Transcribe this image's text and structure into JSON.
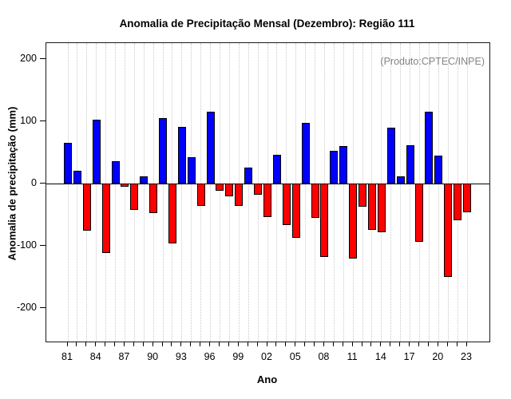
{
  "title": "Anomalia de Precipitação Mensal (Dezembro): Região 111",
  "annotation": "(Produto:CPTEC/INPE)",
  "chart_data": {
    "type": "bar",
    "title": "Anomalia de Precipitação Mensal (Dezembro): Região 111",
    "xlabel": "Ano",
    "ylabel": "Anomalia de precipitação (mm)",
    "annotation": "(Produto:CPTEC/INPE)",
    "ylim": [
      -250,
      225
    ],
    "yticks": [
      200,
      100,
      0,
      -100,
      -200
    ],
    "xtick_labels": [
      "81",
      "84",
      "87",
      "90",
      "93",
      "96",
      "99",
      "02",
      "05",
      "08",
      "11",
      "14",
      "17",
      "20",
      "23"
    ],
    "xtick_label_interval_years": 3,
    "grid": "vertical dotted gridline per year",
    "legend": "none",
    "positive_color": "#0000ff",
    "negative_color": "#ff0000",
    "bar_border_color": "#000000",
    "annotation_color": "#848484",
    "years": [
      1981,
      1982,
      1983,
      1984,
      1985,
      1986,
      1987,
      1988,
      1989,
      1990,
      1991,
      1992,
      1993,
      1994,
      1995,
      1996,
      1997,
      1998,
      1999,
      2000,
      2001,
      2002,
      2003,
      2004,
      2005,
      2006,
      2007,
      2008,
      2009,
      2010,
      2011,
      2012,
      2013,
      2014,
      2015,
      2016,
      2017,
      2018,
      2019,
      2020,
      2021,
      2022,
      2023
    ],
    "values": [
      66,
      20,
      -76,
      102,
      -112,
      36,
      -5,
      -42,
      12,
      -48,
      105,
      -96,
      91,
      42,
      -36,
      116,
      -12,
      -20,
      -36,
      26,
      -18,
      -54,
      46,
      -67,
      -87,
      97,
      -55,
      -118,
      52,
      60,
      -120,
      -37,
      -74,
      -78,
      90,
      12,
      61,
      -93,
      115,
      45,
      -150,
      -59,
      -46
    ]
  }
}
